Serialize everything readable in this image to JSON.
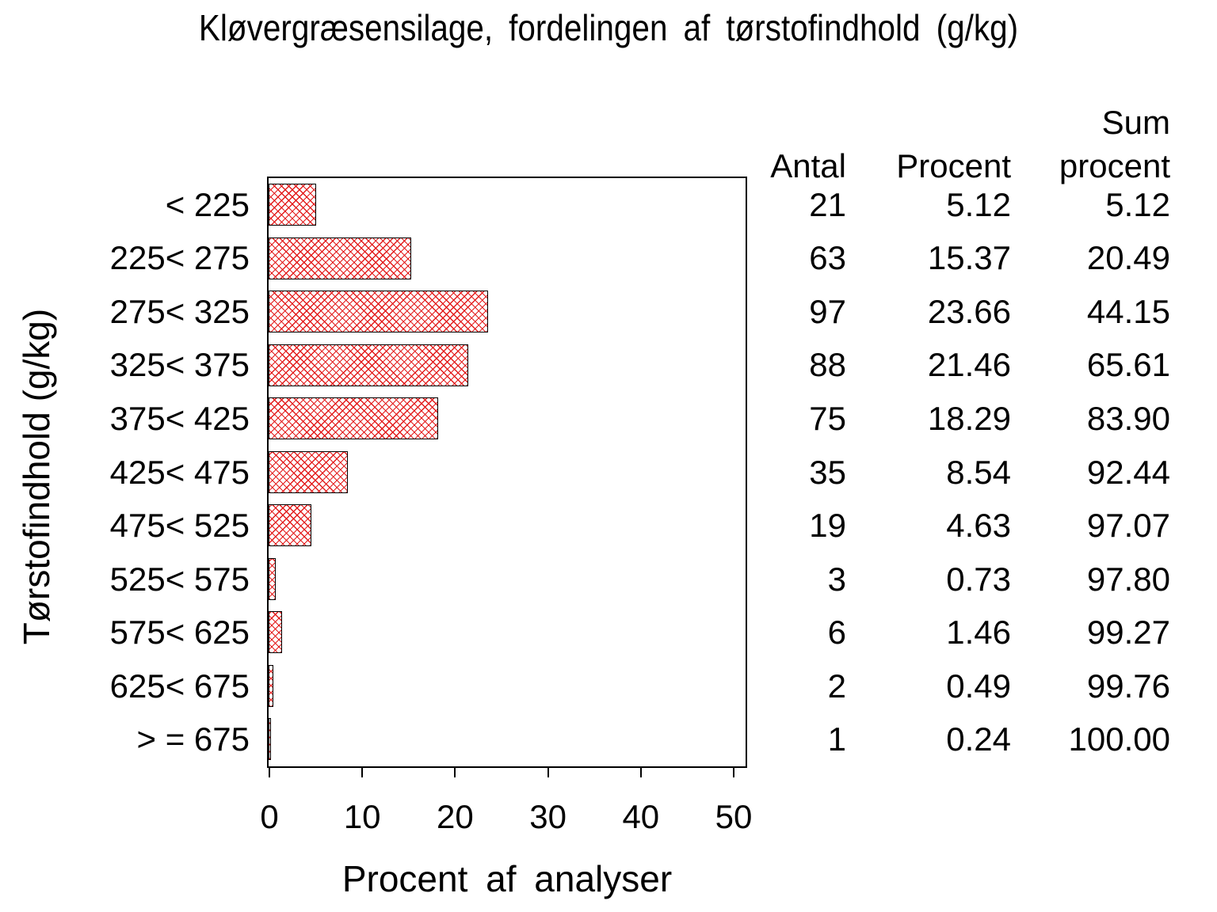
{
  "title": "Kløvergræsensilage,  fordelingen  af  tørstofindhold  (g/kg)",
  "y_axis_label": "Tørstofindhold  (g/kg)",
  "x_axis_label": "Procent  af  analyser",
  "table": {
    "col1_header": "Antal",
    "col2_header": "Procent",
    "col3_header_line1": "Sum",
    "col3_header_line2": "procent"
  },
  "chart_data": {
    "type": "bar",
    "orientation": "horizontal",
    "title": "Kløvergræsensilage, fordelingen af tørstofindhold (g/kg)",
    "xlabel": "Procent af analyser",
    "ylabel": "Tørstofindhold (g/kg)",
    "xlim": [
      0,
      50
    ],
    "x_ticks": [
      0,
      10,
      20,
      30,
      40,
      50
    ],
    "grid": false,
    "bar_color": "#e31b1b",
    "bar_pattern": "crosshatch",
    "frame_color": "#000000",
    "categories": [
      "< 225",
      "225< 275",
      "275< 325",
      "325< 375",
      "375< 425",
      "425< 475",
      "475< 525",
      "525< 575",
      "575< 625",
      "625< 675",
      "> = 675"
    ],
    "series": [
      {
        "name": "Antal",
        "values": [
          21,
          63,
          97,
          88,
          75,
          35,
          19,
          3,
          6,
          2,
          1
        ]
      },
      {
        "name": "Procent",
        "values": [
          5.12,
          15.37,
          23.66,
          21.46,
          18.29,
          8.54,
          4.63,
          0.73,
          1.46,
          0.49,
          0.24
        ]
      },
      {
        "name": "Sum procent",
        "values": [
          "5.12",
          "20.49",
          "44.15",
          "65.61",
          "83.90",
          "92.44",
          "97.07",
          "97.80",
          "99.27",
          "99.76",
          "100.00"
        ]
      }
    ],
    "bar_value_series": "Procent"
  }
}
